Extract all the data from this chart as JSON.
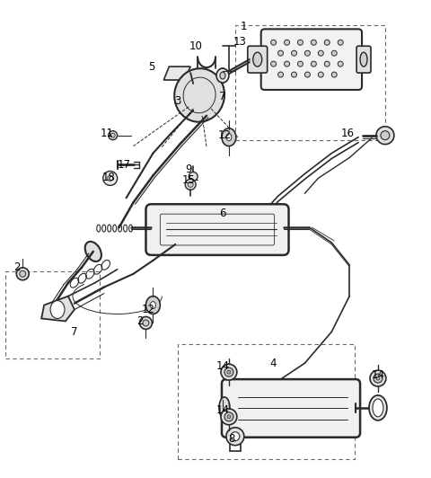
{
  "bg": "#ffffff",
  "lc": "#2a2a2a",
  "dc": "#666666",
  "figsize": [
    4.8,
    5.32
  ],
  "dpi": 100,
  "labels": [
    [
      "1",
      272,
      28
    ],
    [
      "2",
      18,
      298
    ],
    [
      "2",
      155,
      358
    ],
    [
      "3",
      198,
      112
    ],
    [
      "4",
      305,
      405
    ],
    [
      "5",
      168,
      73
    ],
    [
      "6",
      248,
      237
    ],
    [
      "7",
      248,
      107
    ],
    [
      "7",
      82,
      370
    ],
    [
      "8",
      258,
      490
    ],
    [
      "9",
      210,
      188
    ],
    [
      "10",
      218,
      50
    ],
    [
      "11",
      118,
      148
    ],
    [
      "12",
      250,
      150
    ],
    [
      "12",
      165,
      345
    ],
    [
      "13",
      267,
      45
    ],
    [
      "14",
      248,
      408
    ],
    [
      "14",
      248,
      458
    ],
    [
      "14",
      422,
      418
    ],
    [
      "15",
      210,
      200
    ],
    [
      "16",
      388,
      148
    ],
    [
      "17",
      138,
      183
    ],
    [
      "18",
      120,
      197
    ]
  ]
}
